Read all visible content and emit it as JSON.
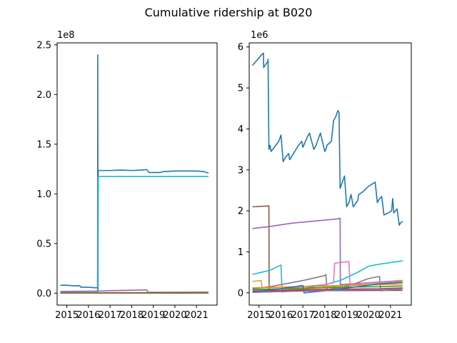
{
  "figure": {
    "title": "Cumulative ridership at B020"
  },
  "chart_data": [
    {
      "type": "line",
      "title": "",
      "xlabel": "",
      "ylabel": "",
      "x_tick_labels": [
        "2015",
        "2016",
        "2017",
        "2018",
        "2019",
        "2020",
        "2021"
      ],
      "y_tick_labels": [
        "0.0",
        "0.5",
        "1.0",
        "1.5",
        "2.0",
        "2.5"
      ],
      "y_ticks": [
        0,
        0.5,
        1.0,
        1.5,
        2.0,
        2.5
      ],
      "y_offset_label": "1e8",
      "xlim": [
        2014.55,
        2021.95
      ],
      "ylim": [
        -0.12,
        2.52
      ],
      "y_unit_scale": 100000000,
      "grid": false,
      "series": [
        {
          "color": "#1f77b4",
          "x": [
            2014.7,
            2015.0,
            2015.3,
            2015.6,
            2015.65,
            2016.0,
            2016.3,
            2016.42,
            2016.43,
            2016.44,
            2016.45,
            2016.47,
            2016.5,
            2017.0,
            2017.5,
            2018.0,
            2018.5,
            2018.7,
            2018.8,
            2019.3,
            2019.5,
            2020.0,
            2020.5,
            2021.0,
            2021.3,
            2021.4,
            2021.55
          ],
          "y": [
            0.08,
            0.08,
            0.075,
            0.075,
            0.06,
            0.06,
            0.055,
            0.055,
            2.4,
            0.02,
            1.23,
            1.235,
            1.235,
            1.235,
            1.24,
            1.235,
            1.24,
            1.245,
            1.215,
            1.215,
            1.225,
            1.23,
            1.23,
            1.23,
            1.225,
            1.22,
            1.21
          ]
        },
        {
          "color": "#17becf",
          "x": [
            2014.7,
            2016.42,
            2016.45,
            2017.0,
            2018.0,
            2019.0,
            2020.0,
            2021.0,
            2021.55
          ],
          "y": [
            0.01,
            0.01,
            1.175,
            1.175,
            1.175,
            1.175,
            1.175,
            1.175,
            1.175
          ]
        },
        {
          "color": "#9467bd",
          "x": [
            2014.7,
            2016.5,
            2017.0,
            2018.0,
            2018.7,
            2018.75,
            2021.55
          ],
          "y": [
            0.018,
            0.022,
            0.026,
            0.03,
            0.033,
            0.01,
            0.012
          ]
        },
        {
          "color": "#bcbd22",
          "x": [
            2014.7,
            2021.55
          ],
          "y": [
            0.006,
            0.006
          ]
        },
        {
          "color": "#2ca02c",
          "x": [
            2014.7,
            2021.55
          ],
          "y": [
            0.003,
            0.004
          ]
        },
        {
          "color": "#8c564b",
          "x": [
            2014.7,
            2021.55
          ],
          "y": [
            0.002,
            0.002
          ]
        }
      ]
    },
    {
      "type": "line",
      "title": "",
      "xlabel": "",
      "ylabel": "",
      "x_tick_labels": [
        "2015",
        "2016",
        "2017",
        "2018",
        "2019",
        "2020",
        "2021"
      ],
      "y_tick_labels": [
        "0",
        "1",
        "2",
        "3",
        "4",
        "5",
        "6"
      ],
      "y_ticks": [
        0,
        1,
        2,
        3,
        4,
        5,
        6
      ],
      "y_offset_label": "1e6",
      "xlim": [
        2014.55,
        2021.95
      ],
      "ylim": [
        -0.3,
        6.1
      ],
      "y_unit_scale": 1000000,
      "grid": false,
      "series": [
        {
          "color": "#1f77b4",
          "x": [
            2014.7,
            2015.1,
            2015.2,
            2015.21,
            2015.4,
            2015.41,
            2015.45,
            2015.5,
            2015.55,
            2015.9,
            2016.0,
            2016.1,
            2016.2,
            2016.35,
            2016.4,
            2016.8,
            2016.95,
            2017.0,
            2017.2,
            2017.3,
            2017.5,
            2017.6,
            2017.8,
            2018.0,
            2018.05,
            2018.1,
            2018.3,
            2018.4,
            2018.5,
            2018.6,
            2018.65,
            2018.7,
            2018.8,
            2018.9,
            2019.0,
            2019.1,
            2019.2,
            2019.3,
            2019.5,
            2019.55,
            2019.7,
            2019.9,
            2020.0,
            2020.3,
            2020.4,
            2020.5,
            2020.6,
            2020.7,
            2020.9,
            2021.05,
            2021.1,
            2021.15,
            2021.3,
            2021.4,
            2021.45,
            2021.55
          ],
          "y": [
            5.55,
            5.8,
            5.85,
            5.5,
            5.65,
            5.7,
            3.5,
            3.6,
            3.45,
            3.7,
            3.85,
            3.2,
            3.3,
            3.4,
            3.25,
            3.6,
            3.7,
            3.55,
            3.8,
            3.9,
            3.5,
            3.6,
            3.9,
            3.45,
            3.5,
            3.6,
            3.7,
            4.2,
            4.3,
            4.45,
            4.4,
            2.55,
            2.7,
            2.85,
            2.1,
            2.2,
            2.4,
            2.1,
            2.25,
            2.4,
            2.45,
            2.55,
            2.6,
            2.7,
            2.2,
            2.3,
            2.35,
            1.9,
            1.95,
            2.0,
            2.3,
            1.95,
            2.05,
            1.65,
            1.7,
            1.75
          ]
        },
        {
          "color": "#8c564b",
          "x": [
            2014.7,
            2015.45,
            2015.46,
            2021.55
          ],
          "y": [
            2.1,
            2.12,
            0.05,
            0.06
          ]
        },
        {
          "color": "#9467bd",
          "x": [
            2014.7,
            2015.5,
            2016.5,
            2017.5,
            2018.5,
            2018.7,
            2018.71,
            2021.55
          ],
          "y": [
            1.57,
            1.62,
            1.7,
            1.75,
            1.8,
            1.82,
            0.2,
            0.3
          ]
        },
        {
          "color": "#17becf",
          "x": [
            2014.7,
            2015.5,
            2016.0,
            2016.05,
            2017.0,
            2018.0,
            2018.7,
            2019.5,
            2020.0,
            2020.5,
            2021.55
          ],
          "y": [
            0.45,
            0.55,
            0.68,
            0.02,
            0.1,
            0.2,
            0.3,
            0.5,
            0.65,
            0.7,
            0.78
          ]
        },
        {
          "color": "#7f7f7f",
          "x": [
            2014.7,
            2015.5,
            2016.0,
            2017.0,
            2018.0,
            2018.05,
            2018.1,
            2019.0,
            2019.5,
            2020.0,
            2020.5,
            2020.55,
            2021.55
          ],
          "y": [
            0.1,
            0.15,
            0.2,
            0.3,
            0.42,
            0.45,
            0.08,
            0.15,
            0.25,
            0.35,
            0.4,
            0.05,
            0.1
          ]
        },
        {
          "color": "#e377c2",
          "x": [
            2014.7,
            2016.0,
            2017.0,
            2018.0,
            2018.4,
            2018.45,
            2018.8,
            2019.1,
            2019.15,
            2021.2,
            2021.25,
            2021.55
          ],
          "y": [
            0.05,
            0.1,
            0.15,
            0.2,
            0.25,
            0.72,
            0.75,
            0.76,
            0.2,
            0.28,
            0.3,
            0.3
          ]
        },
        {
          "color": "#bcbd22",
          "x": [
            2014.7,
            2015.1,
            2015.15,
            2016.0,
            2017.0,
            2018.0,
            2019.0,
            2020.0,
            2021.0,
            2021.55
          ],
          "y": [
            0.28,
            0.3,
            0.02,
            0.06,
            0.1,
            0.14,
            0.18,
            0.2,
            0.25,
            0.28
          ]
        },
        {
          "color": "#ff7f0e",
          "x": [
            2014.7,
            2016.0,
            2017.5,
            2019.0,
            2020.5,
            2021.55
          ],
          "y": [
            0.12,
            0.14,
            0.16,
            0.18,
            0.2,
            0.22
          ]
        },
        {
          "color": "#2ca02c",
          "x": [
            2014.7,
            2016.0,
            2017.5,
            2019.0,
            2020.5,
            2021.55
          ],
          "y": [
            0.08,
            0.1,
            0.12,
            0.14,
            0.15,
            0.17
          ]
        },
        {
          "color": "#d62728",
          "x": [
            2014.7,
            2016.0,
            2017.5,
            2019.0,
            2020.5,
            2021.55
          ],
          "y": [
            0.04,
            0.06,
            0.08,
            0.09,
            0.1,
            0.12
          ]
        },
        {
          "color": "#1f77b4",
          "x": [
            2014.7,
            2016.0,
            2017.0,
            2017.05,
            2018.0,
            2019.5,
            2020.5,
            2021.55
          ],
          "y": [
            0.02,
            0.1,
            0.18,
            0.0,
            0.05,
            0.15,
            0.22,
            0.26
          ]
        },
        {
          "color": "#9467bd",
          "x": [
            2014.7,
            2016.0,
            2017.5,
            2019.0,
            2020.5,
            2021.55
          ],
          "y": [
            0.01,
            0.03,
            0.05,
            0.07,
            0.09,
            0.1
          ]
        }
      ]
    }
  ]
}
